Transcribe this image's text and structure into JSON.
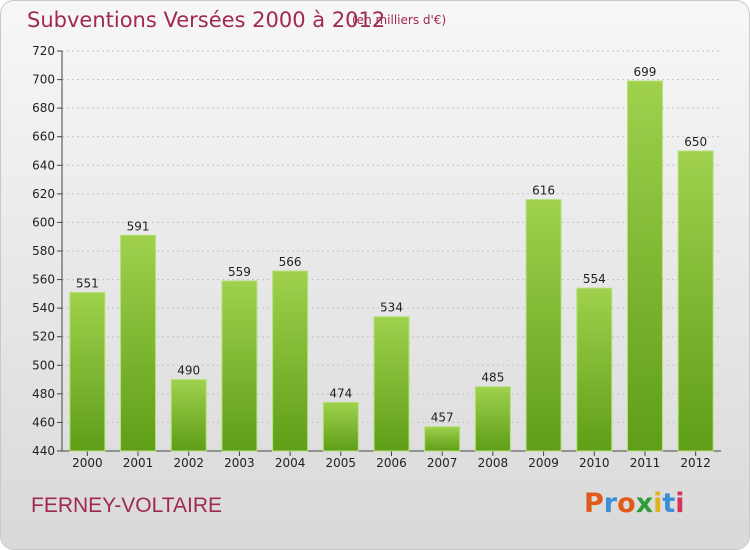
{
  "header": {
    "title": "Subventions Versées 2000 à 2012",
    "subtitle": "(en milliers d'€)"
  },
  "footer": {
    "place": "FERNEY-VOLTAIRE",
    "logo": "Proxiti"
  },
  "colors": {
    "text_accent": "#a0294f",
    "bar_top": "#9fd14d",
    "bar_bottom": "#5f9e17",
    "logo_letters": [
      "#e05a1c",
      "#3a8fd6",
      "#e05a1c",
      "#2f9e3a",
      "#e0b21c",
      "#3a8fd6",
      "#d6325a"
    ]
  },
  "chart_data": {
    "type": "bar",
    "categories": [
      "2000",
      "2001",
      "2002",
      "2003",
      "2004",
      "2005",
      "2006",
      "2007",
      "2008",
      "2009",
      "2010",
      "2011",
      "2012"
    ],
    "values": [
      551,
      591,
      490,
      559,
      566,
      474,
      534,
      457,
      485,
      616,
      554,
      699,
      650
    ],
    "title": "Subventions Versées 2000 à 2012",
    "ylim": [
      440,
      720
    ],
    "yticks": [
      440,
      460,
      480,
      500,
      520,
      540,
      560,
      580,
      600,
      620,
      640,
      660,
      680,
      700,
      720
    ],
    "grid": true,
    "data_labels": true
  }
}
